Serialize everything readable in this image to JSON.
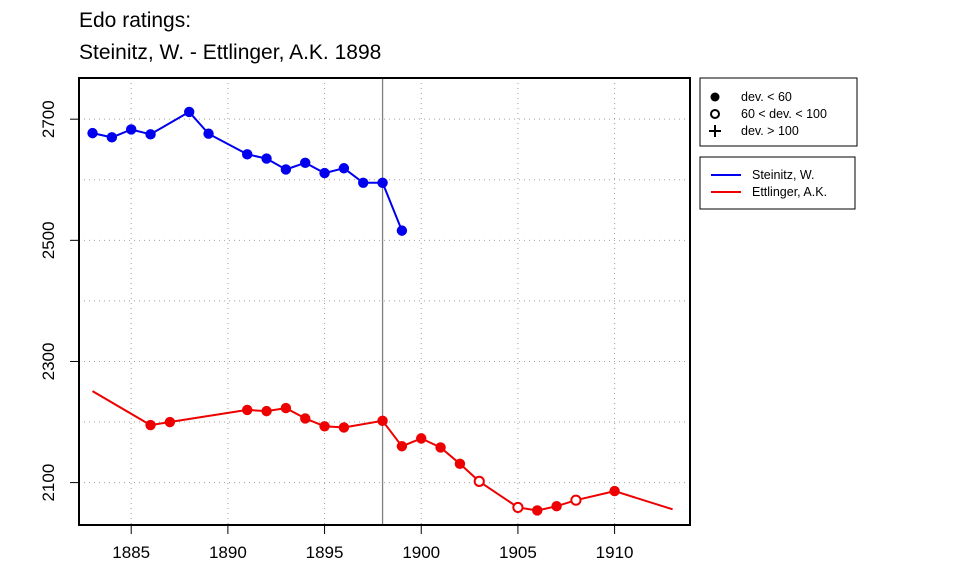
{
  "chart_data": {
    "type": "line",
    "title_line1": "Edo ratings:",
    "title_line2": "Steinitz, W. - Ettlinger, A.K. 1898",
    "xlabel": "",
    "ylabel": "",
    "xlim": [
      1882.3,
      1913.9
    ],
    "ylim": [
      2030,
      2768
    ],
    "x_ticks": [
      1885,
      1890,
      1895,
      1900,
      1905,
      1910
    ],
    "y_ticks": [
      2100,
      2300,
      2500,
      2700
    ],
    "grid": true,
    "grid_x": [
      1885,
      1890,
      1895,
      1900,
      1905,
      1910
    ],
    "grid_y": [
      2100,
      2200,
      2300,
      2400,
      2500,
      2600,
      2700
    ],
    "marker_line_x": 1898,
    "marker_legend": [
      {
        "symbol": "filled-circle",
        "label": "dev. < 60"
      },
      {
        "symbol": "open-circle",
        "label": "60 < dev. < 100"
      },
      {
        "symbol": "plus",
        "label": "dev. > 100"
      }
    ],
    "series": [
      {
        "name": "Steinitz, W.",
        "color": "#0000ee",
        "points": [
          {
            "x": 1883,
            "y": 2677,
            "marker": "filled"
          },
          {
            "x": 1884,
            "y": 2670,
            "marker": "filled"
          },
          {
            "x": 1885,
            "y": 2683,
            "marker": "filled"
          },
          {
            "x": 1886,
            "y": 2675,
            "marker": "filled"
          },
          {
            "x": 1888,
            "y": 2712,
            "marker": "filled"
          },
          {
            "x": 1889,
            "y": 2676,
            "marker": "filled"
          },
          {
            "x": 1891,
            "y": 2642,
            "marker": "filled"
          },
          {
            "x": 1892,
            "y": 2635,
            "marker": "filled"
          },
          {
            "x": 1893,
            "y": 2617,
            "marker": "filled"
          },
          {
            "x": 1894,
            "y": 2628,
            "marker": "filled"
          },
          {
            "x": 1895,
            "y": 2611,
            "marker": "filled"
          },
          {
            "x": 1896,
            "y": 2619,
            "marker": "filled"
          },
          {
            "x": 1897,
            "y": 2595,
            "marker": "filled"
          },
          {
            "x": 1898,
            "y": 2595,
            "marker": "filled"
          },
          {
            "x": 1899,
            "y": 2516,
            "marker": "filled"
          }
        ]
      },
      {
        "name": "Ettlinger, A.K.",
        "color": "#ee0000",
        "points": [
          {
            "x": 1883,
            "y": 2251,
            "marker": "none"
          },
          {
            "x": 1886,
            "y": 2195,
            "marker": "filled"
          },
          {
            "x": 1887,
            "y": 2200,
            "marker": "filled"
          },
          {
            "x": 1891,
            "y": 2220,
            "marker": "filled"
          },
          {
            "x": 1892,
            "y": 2218,
            "marker": "filled"
          },
          {
            "x": 1893,
            "y": 2223,
            "marker": "filled"
          },
          {
            "x": 1894,
            "y": 2206,
            "marker": "filled"
          },
          {
            "x": 1895,
            "y": 2193,
            "marker": "filled"
          },
          {
            "x": 1896,
            "y": 2191,
            "marker": "filled"
          },
          {
            "x": 1898,
            "y": 2202,
            "marker": "filled"
          },
          {
            "x": 1899,
            "y": 2160,
            "marker": "filled"
          },
          {
            "x": 1900,
            "y": 2173,
            "marker": "filled"
          },
          {
            "x": 1901,
            "y": 2158,
            "marker": "filled"
          },
          {
            "x": 1902,
            "y": 2131,
            "marker": "filled"
          },
          {
            "x": 1903,
            "y": 2102,
            "marker": "open"
          },
          {
            "x": 1905,
            "y": 2059,
            "marker": "open"
          },
          {
            "x": 1906,
            "y": 2054,
            "marker": "filled"
          },
          {
            "x": 1907,
            "y": 2061,
            "marker": "filled"
          },
          {
            "x": 1908,
            "y": 2071,
            "marker": "open"
          },
          {
            "x": 1910,
            "y": 2086,
            "marker": "filled"
          },
          {
            "x": 1913,
            "y": 2056,
            "marker": "none"
          }
        ]
      }
    ]
  }
}
